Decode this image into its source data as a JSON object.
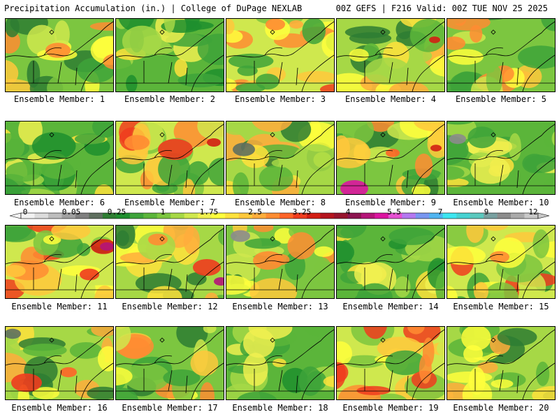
{
  "header": {
    "title": "Precipitation Accumulation (in.) | College of DuPage NEXLAB",
    "run_info": "00Z GEFS | F216 Valid: 00Z TUE NOV 25 2025"
  },
  "legend": {
    "labels": [
      "0",
      "0.05",
      "0.25",
      "1",
      "1.75",
      "2.5",
      "3.25",
      "4",
      "5.5",
      "7",
      "9",
      "12"
    ],
    "colors": [
      "#f2f2f2",
      "#dcdcdc",
      "#bdbdbd",
      "#a0a0a0",
      "#7f7f7f",
      "#5f6f5f",
      "#2e7d32",
      "#1e8f2e",
      "#3ea33a",
      "#5bb53a",
      "#7cc640",
      "#a6d846",
      "#cfe84e",
      "#f0f050",
      "#ffff3c",
      "#ffe23c",
      "#ffc83c",
      "#ffad3c",
      "#ff8c32",
      "#ff6428",
      "#f03c1e",
      "#d21e14",
      "#b4141e",
      "#96142d",
      "#8c1450",
      "#b41478",
      "#dc14a0",
      "#e650d2",
      "#b478f0",
      "#7896f0",
      "#50b4f0",
      "#3ce6f0",
      "#46d2d2",
      "#5ac8be",
      "#78a0a0",
      "#8c8c8c",
      "#aaaaaa",
      "#c8c8c8"
    ]
  },
  "members": [
    {
      "label": "Ensemble Member: 1"
    },
    {
      "label": "Ensemble Member: 2"
    },
    {
      "label": "Ensemble Member: 3"
    },
    {
      "label": "Ensemble Member: 4"
    },
    {
      "label": "Ensemble Member: 5"
    },
    {
      "label": "Ensemble Member: 6"
    },
    {
      "label": "Ensemble Member: 7"
    },
    {
      "label": "Ensemble Member: 8"
    },
    {
      "label": "Ensemble Member: 9"
    },
    {
      "label": "Ensemble Member: 10"
    },
    {
      "label": "Ensemble Member: 11"
    },
    {
      "label": "Ensemble Member: 12"
    },
    {
      "label": "Ensemble Member: 13"
    },
    {
      "label": "Ensemble Member: 14"
    },
    {
      "label": "Ensemble Member: 15"
    },
    {
      "label": "Ensemble Member: 16"
    },
    {
      "label": "Ensemble Member: 17"
    },
    {
      "label": "Ensemble Member: 18"
    },
    {
      "label": "Ensemble Member: 19"
    },
    {
      "label": "Ensemble Member: 20"
    }
  ]
}
